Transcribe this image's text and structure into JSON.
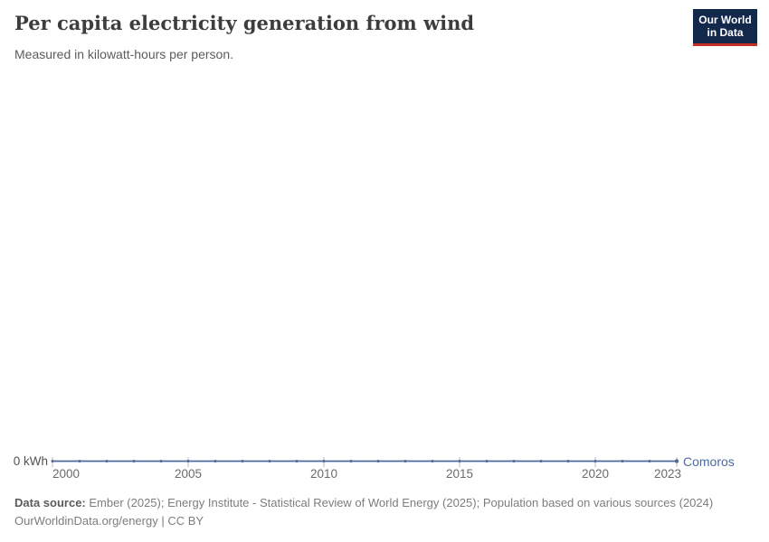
{
  "header": {
    "title": "Per capita electricity generation from wind",
    "subtitle": "Measured in kilowatt-hours per person.",
    "logo": {
      "line1": "Our World",
      "line2": "in Data",
      "bg_color": "#12294b",
      "accent_color": "#c52f25"
    }
  },
  "chart_data": {
    "type": "line",
    "title": "Per capita electricity generation from wind",
    "subtitle": "Measured in kilowatt-hours per person.",
    "x": [
      2000,
      2001,
      2002,
      2003,
      2004,
      2005,
      2006,
      2007,
      2008,
      2009,
      2010,
      2011,
      2012,
      2013,
      2014,
      2015,
      2016,
      2017,
      2018,
      2019,
      2020,
      2021,
      2022,
      2023
    ],
    "series": [
      {
        "name": "Comoros",
        "color": "#4c6a9c",
        "values": [
          0,
          0,
          0,
          0,
          0,
          0,
          0,
          0,
          0,
          0,
          0,
          0,
          0,
          0,
          0,
          0,
          0,
          0,
          0,
          0,
          0,
          0,
          0,
          0
        ]
      }
    ],
    "x_ticks": [
      2000,
      2005,
      2010,
      2015,
      2020,
      2023
    ],
    "xlim": [
      2000,
      2023
    ],
    "y_ticks": [
      0
    ],
    "y_axis_zero_label": "0 kWh",
    "grid": false,
    "legend": "series label at line end"
  },
  "footer": {
    "source_label": "Data source:",
    "source_text": "Ember (2025); Energy Institute - Statistical Review of World Energy (2025); Population based on various sources (2024)",
    "note_text": "OurWorldinData.org/energy | CC BY"
  }
}
